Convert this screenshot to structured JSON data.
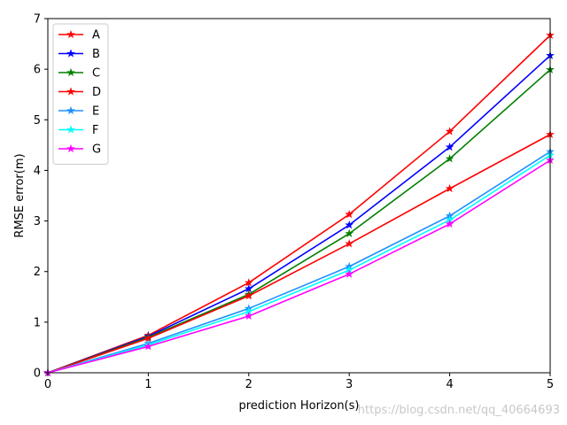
{
  "chart_data": {
    "type": "line",
    "title": "",
    "xlabel": "prediction Horizon(s)",
    "ylabel": "RMSE error(m)",
    "x": [
      0,
      1,
      2,
      3,
      4,
      5
    ],
    "xlim": [
      0,
      5
    ],
    "ylim": [
      0,
      7
    ],
    "xticks": [
      "0",
      "1",
      "2",
      "3",
      "4",
      "5"
    ],
    "yticks": [
      "0",
      "1",
      "2",
      "3",
      "4",
      "5",
      "6",
      "7"
    ],
    "grid": false,
    "legend_position": "top-left",
    "marker": "star",
    "series": [
      {
        "name": "A",
        "color": "#ff0000",
        "values": [
          0,
          0.74,
          1.78,
          3.13,
          4.77,
          6.67
        ]
      },
      {
        "name": "B",
        "color": "#0000ff",
        "values": [
          0,
          0.72,
          1.66,
          2.92,
          4.46,
          6.27
        ]
      },
      {
        "name": "C",
        "color": "#008000",
        "values": [
          0,
          0.7,
          1.55,
          2.75,
          4.23,
          5.99
        ]
      },
      {
        "name": "D",
        "color": "#ff0000",
        "values": [
          0,
          0.68,
          1.52,
          2.55,
          3.64,
          4.71
        ]
      },
      {
        "name": "E",
        "color": "#1e90ff",
        "values": [
          0,
          0.58,
          1.27,
          2.1,
          3.1,
          4.37
        ]
      },
      {
        "name": "F",
        "color": "#00ffff",
        "values": [
          0,
          0.55,
          1.21,
          2.03,
          3.02,
          4.3
        ]
      },
      {
        "name": "G",
        "color": "#ff00ff",
        "values": [
          0,
          0.52,
          1.12,
          1.95,
          2.94,
          4.2
        ]
      }
    ]
  },
  "watermark": "https://blog.csdn.net/qq_40664693"
}
